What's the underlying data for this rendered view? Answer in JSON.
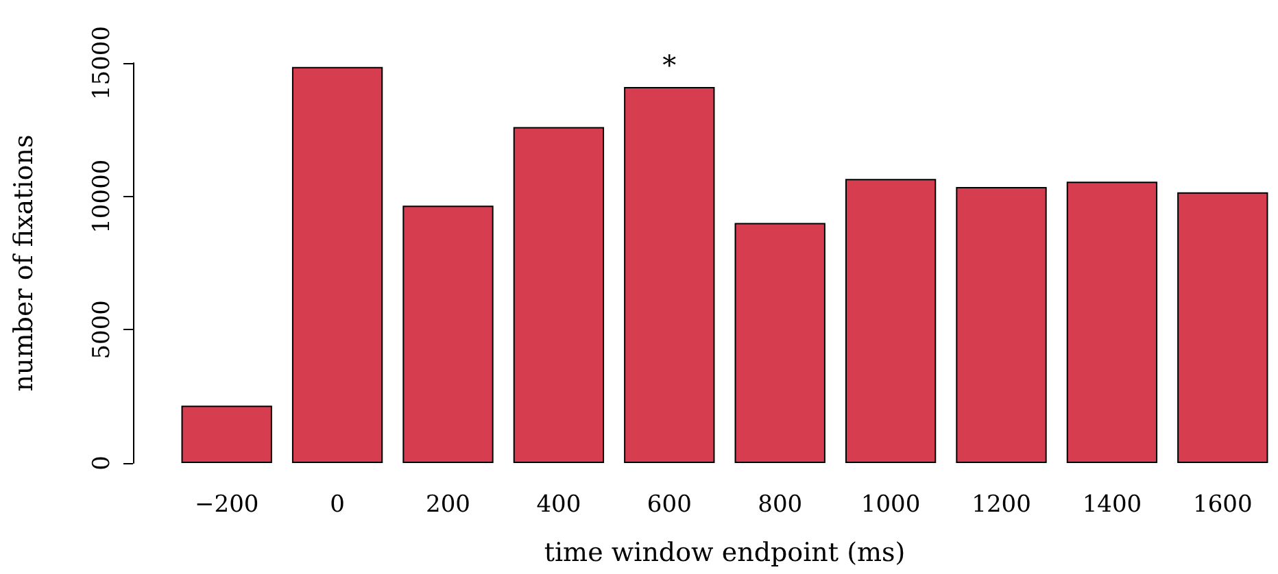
{
  "chart_data": {
    "type": "bar",
    "xlabel": "time window endpoint (ms)",
    "ylabel": "number of fixations",
    "categories": [
      "−200",
      "0",
      "200",
      "400",
      "600",
      "800",
      "1000",
      "1200",
      "1400",
      "1600"
    ],
    "values": [
      2150,
      14850,
      9650,
      12600,
      14100,
      9000,
      10650,
      10350,
      10550,
      10150
    ],
    "color": "#d63e50",
    "ylim": [
      0,
      15000
    ],
    "yticks": [
      0,
      5000,
      10000,
      15000
    ],
    "grid": false,
    "annotations": [
      {
        "text": "*",
        "x": "600",
        "y": 14100
      }
    ]
  }
}
